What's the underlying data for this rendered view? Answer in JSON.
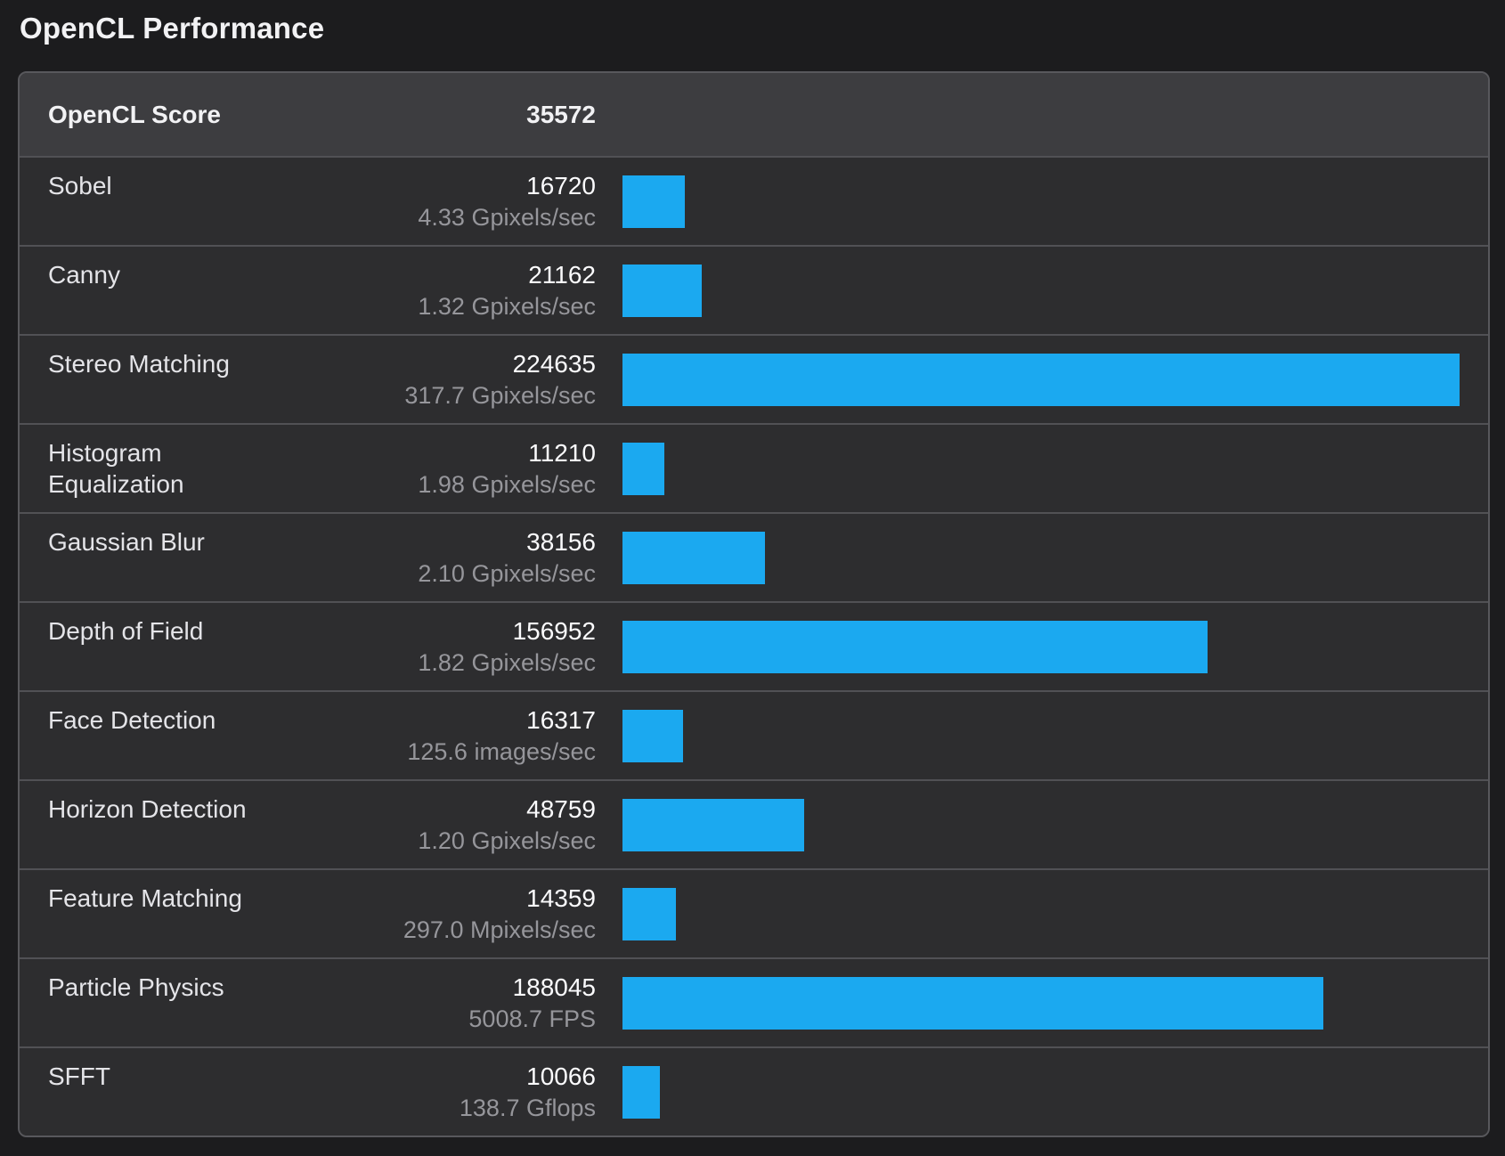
{
  "title": "OpenCL Performance",
  "header": {
    "label": "OpenCL Score",
    "score": "35572"
  },
  "colors": {
    "page_background": "#1c1c1e",
    "table_background": "#2d2d2f",
    "header_background": "#3d3d40",
    "row_separator": "#515155",
    "table_border": "#58585c",
    "bar": "#1ba9f0",
    "label_text": "#e4e4e8",
    "score_text": "#fbfbfd",
    "rate_text": "#96969b",
    "title_text": "#f2f2f4"
  },
  "chart_data": {
    "type": "bar",
    "title": "OpenCL Performance",
    "orientation": "horizontal",
    "overall": {
      "label": "OpenCL Score",
      "value": 35572
    },
    "categories": [
      "Sobel",
      "Canny",
      "Stereo Matching",
      "Histogram Equalization",
      "Gaussian Blur",
      "Depth of Field",
      "Face Detection",
      "Horizon Detection",
      "Feature Matching",
      "Particle Physics",
      "SFFT"
    ],
    "values": [
      16720,
      21162,
      224635,
      11210,
      38156,
      156952,
      16317,
      48759,
      14359,
      188045,
      10066
    ],
    "rate_labels": [
      "4.33 Gpixels/sec",
      "1.32 Gpixels/sec",
      "317.7 Gpixels/sec",
      "1.98 Gpixels/sec",
      "2.10 Gpixels/sec",
      "1.82 Gpixels/sec",
      "125.6 images/sec",
      "1.20 Gpixels/sec",
      "297.0 Mpixels/sec",
      "5008.7 FPS",
      "138.7 Gflops"
    ],
    "max_value": 224635,
    "xlim": [
      0,
      224635
    ],
    "grid": false,
    "legend": false
  },
  "rows": [
    {
      "name": "Sobel",
      "score": "16720",
      "rate": "4.33 Gpixels/sec",
      "value": 16720
    },
    {
      "name": "Canny",
      "score": "21162",
      "rate": "1.32 Gpixels/sec",
      "value": 21162
    },
    {
      "name": "Stereo Matching",
      "score": "224635",
      "rate": "317.7 Gpixels/sec",
      "value": 224635
    },
    {
      "name": "Histogram Equalization",
      "score": "11210",
      "rate": "1.98 Gpixels/sec",
      "value": 11210
    },
    {
      "name": "Gaussian Blur",
      "score": "38156",
      "rate": "2.10 Gpixels/sec",
      "value": 38156
    },
    {
      "name": "Depth of Field",
      "score": "156952",
      "rate": "1.82 Gpixels/sec",
      "value": 156952
    },
    {
      "name": "Face Detection",
      "score": "16317",
      "rate": "125.6 images/sec",
      "value": 16317
    },
    {
      "name": "Horizon Detection",
      "score": "48759",
      "rate": "1.20 Gpixels/sec",
      "value": 48759
    },
    {
      "name": "Feature Matching",
      "score": "14359",
      "rate": "297.0 Mpixels/sec",
      "value": 14359
    },
    {
      "name": "Particle Physics",
      "score": "188045",
      "rate": "5008.7 FPS",
      "value": 188045
    },
    {
      "name": "SFFT",
      "score": "10066",
      "rate": "138.7 Gflops",
      "value": 10066
    }
  ]
}
